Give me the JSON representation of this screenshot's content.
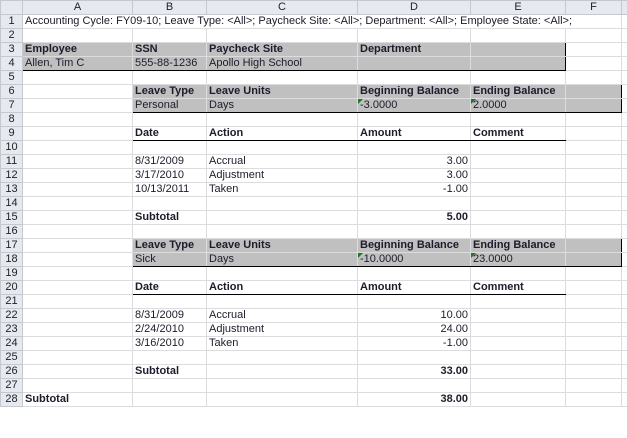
{
  "columns": [
    "A",
    "B",
    "C",
    "D",
    "E",
    "F"
  ],
  "rows": {
    "1": {
      "A": "Accounting Cycle: FY09-10; Leave Type: <All>; Paycheck Site: <All>; Department: <All>; Employee State: <All>;"
    },
    "3": {
      "A": "Employee",
      "B": "SSN",
      "C": "Paycheck Site",
      "D": "Department"
    },
    "4": {
      "A": "Allen, Tim C",
      "B": "555-88-1236",
      "C": "Apollo High School"
    },
    "6": {
      "B": "Leave Type",
      "C": "Leave Units",
      "D": "Beginning Balance",
      "E": "Ending Balance"
    },
    "7": {
      "B": "Personal",
      "C": "Days",
      "D": "-3.0000",
      "E": "2.0000"
    },
    "9": {
      "B": "Date",
      "C": "Action",
      "D": "Amount",
      "E": "Comment"
    },
    "11": {
      "B": "8/31/2009",
      "C": "Accrual",
      "D": "3.00"
    },
    "12": {
      "B": "3/17/2010",
      "C": "Adjustment",
      "D": "3.00"
    },
    "13": {
      "B": "10/13/2011",
      "C": "Taken",
      "D": "-1.00"
    },
    "15": {
      "B": "Subtotal",
      "D": "5.00"
    },
    "17": {
      "B": "Leave Type",
      "C": "Leave Units",
      "D": "Beginning Balance",
      "E": "Ending Balance"
    },
    "18": {
      "B": "Sick",
      "C": "Days",
      "D": "-10.0000",
      "E": "23.0000"
    },
    "20": {
      "B": "Date",
      "C": "Action",
      "D": "Amount",
      "E": "Comment"
    },
    "22": {
      "B": "8/31/2009",
      "C": "Accrual",
      "D": "10.00"
    },
    "23": {
      "B": "2/24/2010",
      "C": "Adjustment",
      "D": "24.00"
    },
    "24": {
      "B": "3/16/2010",
      "C": "Taken",
      "D": "-1.00"
    },
    "26": {
      "B": "Subtotal",
      "D": "33.00"
    },
    "28": {
      "A": "Subtotal",
      "D": "38.00"
    }
  },
  "row_count": 28,
  "colors": {
    "header_fill": "#c0c0c0",
    "error_indicator": "#1e7a1e"
  }
}
